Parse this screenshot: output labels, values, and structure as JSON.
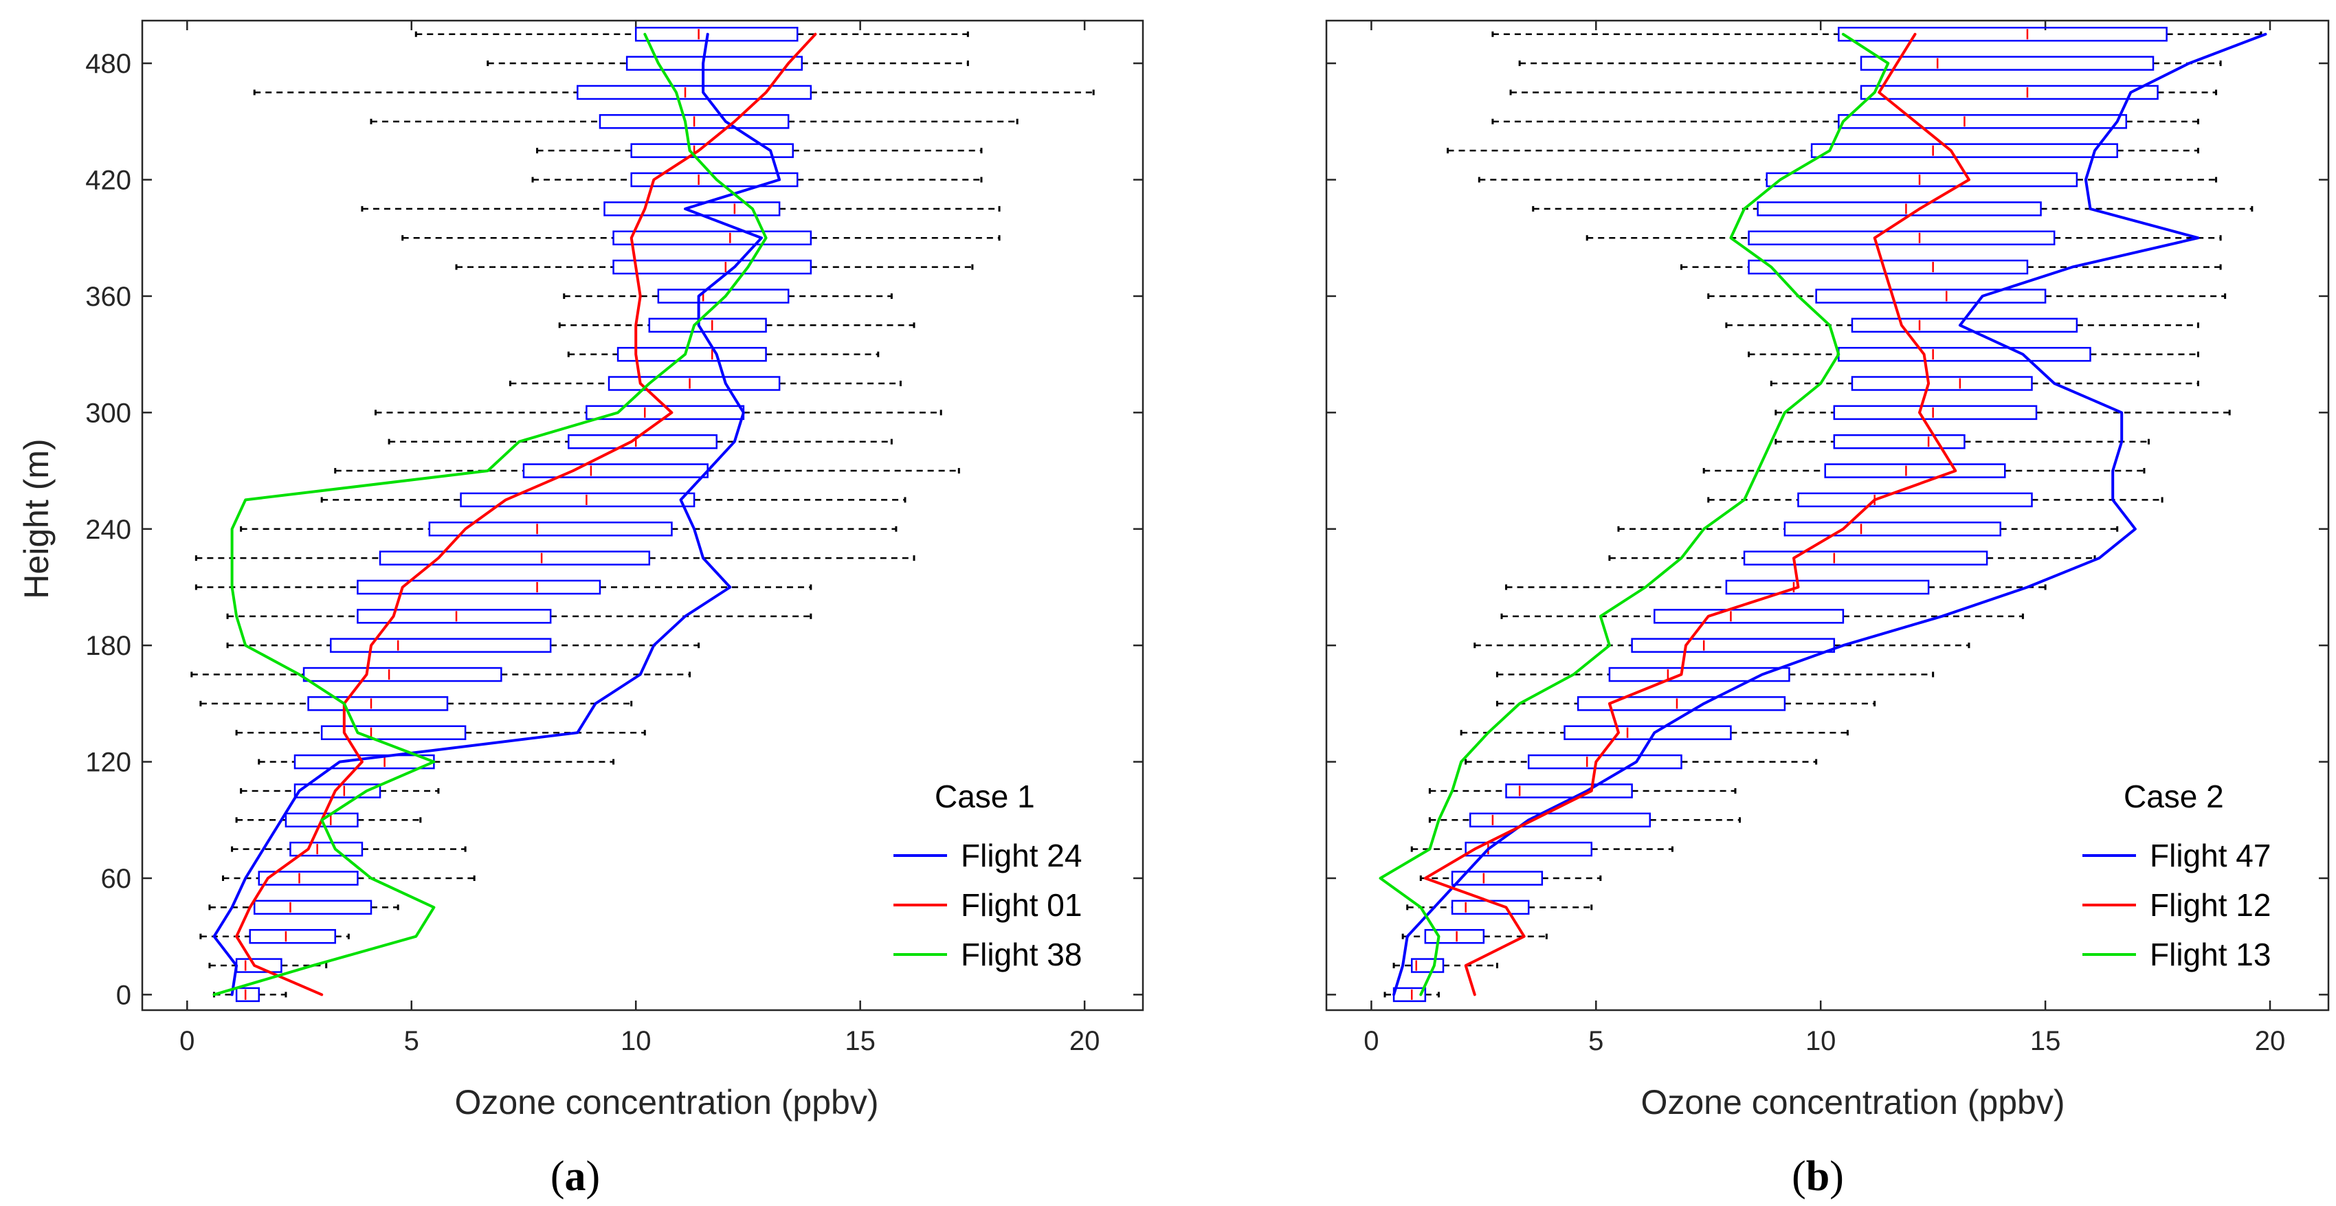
{
  "figure": {
    "colors": {
      "box": "#0000ff",
      "median": "#ff0000",
      "whisker": "#000000",
      "flight_a": "#0000ff",
      "flight_b": "#ff0000",
      "flight_c": "#00e000",
      "axis": "#262626"
    }
  },
  "chart_data": [
    {
      "type": "boxplot+line",
      "panel_label": "a",
      "title": "",
      "xlabel": "Ozone concentration (ppbv)",
      "ylabel": "Height (m)",
      "xlim": [
        -1,
        21.3
      ],
      "ylim": [
        -8,
        502
      ],
      "xticks": [
        "0",
        "5",
        "10",
        "15",
        "20"
      ],
      "yticks": [
        "0",
        "60",
        "120",
        "180",
        "240",
        "300",
        "360",
        "420",
        "480"
      ],
      "legend": {
        "title": "Case 1",
        "position": "bottom-right",
        "entries": [
          "Flight 24",
          "Flight 01",
          "Flight 38"
        ]
      },
      "heights": [
        0,
        15,
        30,
        45,
        60,
        75,
        90,
        105,
        120,
        135,
        150,
        165,
        180,
        195,
        210,
        225,
        240,
        255,
        270,
        285,
        300,
        315,
        330,
        345,
        360,
        375,
        390,
        405,
        420,
        435,
        450,
        465,
        480,
        495
      ],
      "boxes": {
        "whisker_low": [
          0.6,
          0.5,
          0.3,
          0.5,
          0.8,
          1.0,
          1.1,
          1.2,
          1.6,
          1.1,
          0.3,
          0.1,
          0.9,
          0.9,
          0.2,
          0.2,
          1.2,
          3.0,
          3.3,
          4.5,
          4.2,
          7.2,
          8.5,
          8.3,
          8.4,
          6.0,
          4.8,
          3.9,
          7.7,
          7.8,
          4.1,
          1.5,
          6.7,
          5.1
        ],
        "q1": [
          1.1,
          1.1,
          1.4,
          1.5,
          1.6,
          2.3,
          2.2,
          2.4,
          2.4,
          3.0,
          2.7,
          2.6,
          3.2,
          3.8,
          3.8,
          4.3,
          5.4,
          6.1,
          7.5,
          8.5,
          8.9,
          9.4,
          9.6,
          10.3,
          10.5,
          9.5,
          9.5,
          9.3,
          9.9,
          9.9,
          9.2,
          8.7,
          9.8,
          10.0
        ],
        "median": [
          1.3,
          1.3,
          2.2,
          2.3,
          2.5,
          2.9,
          3.2,
          3.5,
          4.4,
          4.1,
          4.1,
          4.5,
          4.7,
          6.0,
          7.8,
          7.9,
          7.8,
          8.9,
          9.0,
          10.0,
          10.2,
          11.2,
          11.7,
          11.7,
          11.5,
          12.0,
          12.1,
          12.2,
          11.4,
          11.3,
          11.3,
          11.1,
          11.5,
          11.4
        ],
        "q3": [
          1.6,
          2.1,
          3.3,
          4.1,
          3.8,
          3.9,
          3.8,
          4.3,
          5.5,
          6.2,
          5.8,
          7.0,
          8.1,
          8.1,
          9.2,
          10.3,
          10.8,
          11.3,
          11.6,
          11.8,
          12.4,
          13.2,
          12.9,
          12.9,
          13.4,
          13.9,
          13.9,
          13.2,
          13.6,
          13.5,
          13.4,
          13.9,
          13.7,
          13.6
        ],
        "whisker_high": [
          2.2,
          3.1,
          3.6,
          4.7,
          6.4,
          6.2,
          5.2,
          5.6,
          9.5,
          10.2,
          9.9,
          11.2,
          11.4,
          13.9,
          13.9,
          16.2,
          15.8,
          16.0,
          17.2,
          15.7,
          16.8,
          15.9,
          15.4,
          16.2,
          15.7,
          17.5,
          18.1,
          18.1,
          17.7,
          17.7,
          18.5,
          20.2,
          17.4,
          17.4
        ]
      },
      "series": [
        {
          "name": "Flight 24",
          "x": [
            1.0,
            1.1,
            0.6,
            1.0,
            1.3,
            1.7,
            2.1,
            2.5,
            3.4,
            8.7,
            9.1,
            10.1,
            10.4,
            11.1,
            12.1,
            11.5,
            11.3,
            11.0,
            11.6,
            12.2,
            12.4,
            12.0,
            11.8,
            11.4,
            11.4,
            12.2,
            12.8,
            11.1,
            13.2,
            13.0,
            12.0,
            11.5,
            11.5,
            11.6
          ],
          "y": [
            0,
            15,
            30,
            45,
            60,
            75,
            90,
            105,
            120,
            135,
            150,
            165,
            180,
            195,
            210,
            225,
            240,
            255,
            270,
            285,
            300,
            315,
            330,
            345,
            360,
            375,
            390,
            405,
            420,
            435,
            450,
            465,
            480,
            495
          ]
        },
        {
          "name": "Flight 01",
          "x": [
            3.0,
            1.5,
            1.1,
            1.4,
            1.8,
            2.7,
            3.0,
            3.3,
            3.9,
            3.5,
            3.5,
            4.0,
            4.1,
            4.6,
            4.8,
            5.6,
            6.2,
            7.1,
            8.6,
            9.9,
            10.8,
            10.1,
            10.0,
            10.0,
            10.1,
            10.0,
            9.9,
            10.2,
            10.4,
            11.4,
            12.2,
            12.9,
            13.4,
            14.0
          ],
          "y": [
            0,
            15,
            30,
            45,
            60,
            75,
            90,
            105,
            120,
            135,
            150,
            165,
            180,
            195,
            210,
            225,
            240,
            255,
            270,
            285,
            300,
            315,
            330,
            345,
            360,
            375,
            390,
            405,
            420,
            435,
            450,
            465,
            480,
            495
          ]
        },
        {
          "name": "Flight 38",
          "x": [
            0.6,
            2.8,
            5.1,
            5.5,
            4.1,
            3.3,
            3.0,
            4.0,
            5.5,
            3.8,
            3.5,
            2.5,
            1.3,
            1.1,
            1.0,
            1.0,
            1.0,
            1.3,
            6.7,
            7.4,
            9.6,
            10.3,
            11.1,
            11.3,
            12.0,
            12.5,
            12.9,
            12.6,
            11.8,
            11.2,
            11.1,
            10.9,
            10.5,
            10.2
          ],
          "y": [
            0,
            15,
            30,
            45,
            60,
            75,
            90,
            105,
            120,
            135,
            150,
            165,
            180,
            195,
            210,
            225,
            240,
            255,
            270,
            285,
            300,
            315,
            330,
            345,
            360,
            375,
            390,
            405,
            420,
            435,
            450,
            465,
            480,
            495
          ]
        }
      ]
    },
    {
      "type": "boxplot+line",
      "panel_label": "b",
      "title": "",
      "xlabel": "Ozone concentration (ppbv)",
      "ylabel": "",
      "xlim": [
        -1,
        21.3
      ],
      "ylim": [
        -8,
        502
      ],
      "xticks": [
        "0",
        "5",
        "10",
        "15",
        "20"
      ],
      "yticks": [],
      "legend": {
        "title": "Case 2",
        "position": "bottom-right",
        "entries": [
          "Flight 47",
          "Flight 12",
          "Flight 13"
        ]
      },
      "heights": [
        0,
        15,
        30,
        45,
        60,
        75,
        90,
        105,
        120,
        135,
        150,
        165,
        180,
        195,
        210,
        225,
        240,
        255,
        270,
        285,
        300,
        315,
        330,
        345,
        360,
        375,
        390,
        405,
        420,
        435,
        450,
        465,
        480,
        495
      ],
      "boxes": {
        "whisker_low": [
          0.3,
          0.5,
          0.7,
          0.8,
          1.1,
          0.9,
          1.3,
          1.3,
          2.1,
          2.0,
          2.8,
          2.8,
          2.3,
          2.9,
          3.0,
          5.3,
          5.5,
          7.5,
          7.4,
          9.0,
          9.0,
          8.9,
          8.4,
          7.9,
          7.5,
          6.9,
          4.8,
          3.6,
          2.4,
          1.7,
          2.7,
          3.1,
          3.3,
          2.7
        ],
        "q1": [
          0.5,
          0.9,
          1.2,
          1.8,
          1.8,
          2.1,
          2.2,
          3.0,
          3.5,
          4.3,
          4.6,
          5.3,
          5.8,
          6.3,
          7.9,
          8.3,
          9.2,
          9.5,
          10.1,
          10.3,
          10.3,
          10.7,
          10.4,
          10.7,
          9.9,
          8.4,
          8.4,
          8.6,
          8.8,
          9.8,
          10.4,
          10.9,
          10.9,
          10.4
        ],
        "median": [
          0.9,
          1.0,
          1.9,
          2.1,
          2.5,
          2.6,
          2.7,
          3.3,
          4.8,
          5.7,
          6.8,
          6.6,
          7.4,
          8.0,
          9.4,
          10.3,
          10.9,
          11.2,
          11.9,
          12.4,
          12.5,
          13.1,
          12.5,
          12.2,
          12.8,
          12.5,
          12.2,
          11.9,
          12.2,
          12.5,
          13.2,
          14.6,
          12.6,
          14.6
        ],
        "q3": [
          1.2,
          1.6,
          2.5,
          3.5,
          3.8,
          4.9,
          6.2,
          5.8,
          6.9,
          8.0,
          9.2,
          9.3,
          10.3,
          10.5,
          12.4,
          13.7,
          14.0,
          14.7,
          14.1,
          13.2,
          14.8,
          14.7,
          16.0,
          15.7,
          15.0,
          14.6,
          15.2,
          14.9,
          15.7,
          16.6,
          16.8,
          17.5,
          17.4,
          17.7
        ],
        "whisker_high": [
          1.5,
          2.8,
          3.9,
          4.9,
          5.1,
          6.7,
          8.2,
          8.1,
          9.9,
          10.6,
          11.2,
          12.5,
          13.3,
          14.5,
          15.0,
          16.1,
          16.6,
          17.6,
          17.2,
          17.3,
          19.1,
          18.4,
          18.4,
          18.4,
          19.0,
          18.9,
          18.9,
          19.6,
          18.8,
          18.4,
          18.4,
          18.8,
          18.9,
          19.8
        ],
        "note": "box centres only; whisker_low/high in panel b follow same dashed style"
      },
      "series": [
        {
          "name": "Flight 47",
          "x": [
            0.5,
            0.7,
            0.8,
            1.4,
            2.0,
            2.6,
            3.5,
            4.8,
            5.9,
            6.3,
            7.4,
            8.7,
            10.5,
            12.7,
            14.6,
            16.2,
            17.0,
            16.5,
            16.5,
            16.7,
            16.7,
            15.2,
            14.5,
            13.1,
            13.6,
            15.6,
            18.4,
            16.0,
            15.9,
            16.1,
            16.6,
            16.9,
            18.2,
            19.9
          ],
          "y": [
            0,
            15,
            30,
            45,
            60,
            75,
            90,
            105,
            120,
            135,
            150,
            165,
            180,
            195,
            210,
            225,
            240,
            255,
            270,
            285,
            300,
            315,
            330,
            345,
            360,
            375,
            390,
            405,
            420,
            435,
            450,
            465,
            480,
            495
          ]
        },
        {
          "name": "Flight 12",
          "x": [
            2.3,
            2.1,
            3.4,
            3.0,
            1.2,
            2.3,
            3.6,
            4.9,
            5.0,
            5.5,
            5.3,
            6.9,
            7.0,
            7.5,
            9.5,
            9.4,
            10.5,
            11.2,
            13.0,
            12.6,
            12.2,
            12.4,
            12.3,
            11.8,
            11.6,
            11.4,
            11.2,
            12.2,
            13.3,
            12.9,
            12.1,
            11.3,
            11.7,
            12.1
          ],
          "y": [
            0,
            15,
            30,
            45,
            60,
            75,
            90,
            105,
            120,
            135,
            150,
            165,
            180,
            195,
            210,
            225,
            240,
            255,
            270,
            285,
            300,
            315,
            330,
            345,
            360,
            375,
            390,
            405,
            420,
            435,
            450,
            465,
            480,
            495
          ]
        },
        {
          "name": "Flight 13",
          "x": [
            1.1,
            1.4,
            1.5,
            1.1,
            0.2,
            1.3,
            1.5,
            1.8,
            2.0,
            2.6,
            3.3,
            4.5,
            5.3,
            5.1,
            6.1,
            6.9,
            7.4,
            8.3,
            8.6,
            8.9,
            9.2,
            10.0,
            10.4,
            10.2,
            9.5,
            8.9,
            8.0,
            8.3,
            9.1,
            10.2,
            10.5,
            11.2,
            11.5,
            10.5
          ],
          "y": [
            0,
            15,
            30,
            45,
            60,
            75,
            90,
            105,
            120,
            135,
            150,
            165,
            180,
            195,
            210,
            225,
            240,
            255,
            270,
            285,
            300,
            315,
            330,
            345,
            360,
            375,
            390,
            405,
            420,
            435,
            450,
            465,
            480,
            495
          ]
        }
      ]
    }
  ]
}
